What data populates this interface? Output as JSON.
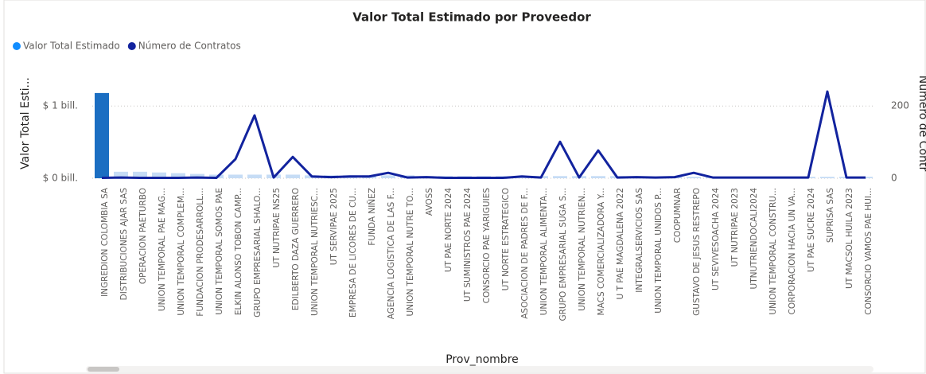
{
  "chart_data": {
    "type": "combo",
    "title": "Valor Total Estimado por Proveedor",
    "x_label": "Prov_nombre",
    "y_label": "Valor Total Esti...",
    "y2_label": "Número de Contr",
    "categories": [
      "INGREDION COLOMBIA SA",
      "DISTRIBUCIONES AJAR SAS",
      "OPERACION PAETURBO",
      "UNION TEMPORAL PAE MAG...",
      "UNION TEMPORAL COMPLEM...",
      "FUNDACION PRODESARROLL...",
      "UNION TEMPORAL SOMOS PAE",
      "ELKIN ALONSO TOBON CAMP...",
      "GRUPO EMPRESARIAL SHALO...",
      "UT NUTRIPAE NS25",
      "EDILBERTO DAZA GUERRERO",
      "UNION TEMPORAL NUTRIESC...",
      "UT SERVIPAE 2025",
      "EMPRESA DE LICORES DE CU...",
      "FUNDA NIÑEZ",
      "AGENCIA LOGISTICA DE LAS F...",
      "UNION TEMPORAL NUTRE TO...",
      "AVOSS",
      "UT PAE NORTE 2024",
      "UT SUMINISTROS PAE 2024",
      "CONSORCIO PAE YARIGUIES",
      "UT NORTE ESTRATEGICO",
      "ASOCIACION DE PADRES DE F...",
      "UNION TEMPORAL ALIMENTA...",
      "GRUPO EMPRESARIAL SUGA S...",
      "UNION TEMPORAL NUTRIEN...",
      "MACS COMERCIALIZADORA Y...",
      "U T PAE MAGDALENA 2022",
      "INTEGRALSERVICIOS SAS",
      "UNION TEMPORAL UNIDOS P...",
      "COOPUMNAR",
      "GUSTAVO DE JESUS RESTREPO",
      "UT SEVIVESOACHA 2024",
      "UT NUTRIPAE 2023",
      "UTNUTRIENDOCALI2024",
      "UNION TEMPORAL CONSTRU...",
      "CORPORACION HACIA UN VA...",
      "UT PAE SUCRE 2024",
      "SUPRISA SAS",
      "UT MACSOL HUILA 2023",
      "CONSORCIO VAMOS PAE HUI..."
    ],
    "series": [
      {
        "name": "Valor Total Estimado",
        "type": "bar",
        "color": "#118dff",
        "bar_colors": [
          "#1b6ec2",
          "#c6dcf5",
          "#c6dcf5",
          "#c6dcf5",
          "#c6dcf5",
          "#c6dcf5",
          "#c6dcf5",
          "#c6dcf5",
          "#c6dcf5",
          "#c6dcf5",
          "#c6dcf5",
          "#c6dcf5",
          "#c6dcf5",
          "#c6dcf5",
          "#c6dcf5",
          "#c6dcf5",
          "#c6dcf5",
          "#c6dcf5",
          "#c6dcf5",
          "#c6dcf5",
          "#c6dcf5",
          "#c6dcf5",
          "#c6dcf5",
          "#c6dcf5",
          "#c6dcf5",
          "#c6dcf5",
          "#c6dcf5",
          "#c6dcf5",
          "#c6dcf5",
          "#c6dcf5",
          "#c6dcf5",
          "#c6dcf5",
          "#c6dcf5",
          "#c6dcf5",
          "#c6dcf5",
          "#c6dcf5",
          "#c6dcf5",
          "#c6dcf5",
          "#c6dcf5",
          "#c6dcf5",
          "#c6dcf5"
        ],
        "values": [
          1.18,
          0.09,
          0.09,
          0.08,
          0.07,
          0.06,
          0.05,
          0.05,
          0.05,
          0.05,
          0.05,
          0.04,
          0.04,
          0.04,
          0.04,
          0.04,
          0.04,
          0.03,
          0.03,
          0.03,
          0.03,
          0.03,
          0.03,
          0.03,
          0.03,
          0.03,
          0.03,
          0.03,
          0.02,
          0.02,
          0.02,
          0.02,
          0.02,
          0.02,
          0.02,
          0.02,
          0.02,
          0.02,
          0.02,
          0.02,
          0.02
        ]
      },
      {
        "name": "Número de Contratos",
        "type": "line",
        "axis": "y2",
        "color": "#12239e",
        "values": [
          1,
          2,
          1,
          1,
          1,
          2,
          1,
          53,
          174,
          2,
          59,
          5,
          3,
          5,
          5,
          15,
          2,
          3,
          1,
          1,
          1,
          1,
          5,
          2,
          101,
          2,
          77,
          2,
          3,
          2,
          3,
          15,
          2,
          2,
          2,
          2,
          2,
          2,
          240,
          2,
          2
        ]
      }
    ],
    "ylim": [
      0,
      1.3
    ],
    "yticks": [
      {
        "value": 0,
        "label": "$ 0 bill."
      },
      {
        "value": 1,
        "label": "$ 1 bill."
      }
    ],
    "y2lim": [
      0,
      260
    ],
    "y2ticks": [
      0,
      200
    ],
    "grid": true,
    "legend": "top-left"
  }
}
